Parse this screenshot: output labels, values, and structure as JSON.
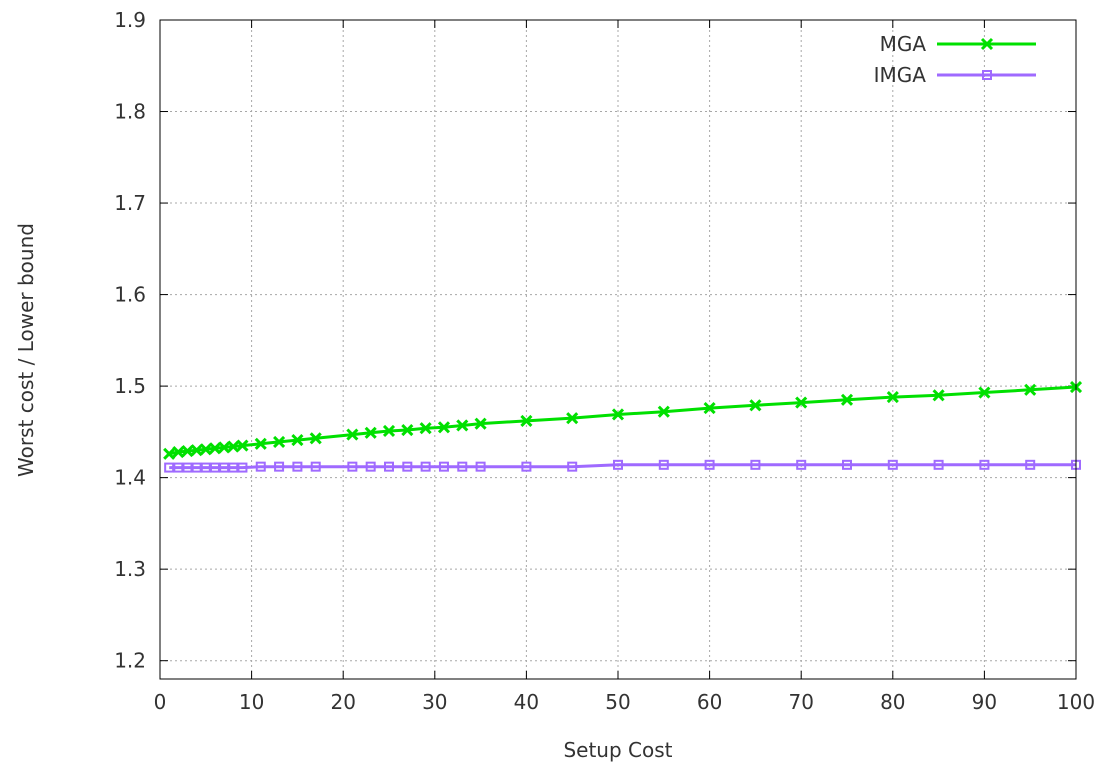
{
  "chart_data": {
    "type": "line",
    "title": "",
    "xlabel": "Setup Cost",
    "ylabel": "Worst cost / Lower bound",
    "xlim": [
      0,
      100
    ],
    "ylim": [
      1.18,
      1.9
    ],
    "xticks": [
      0,
      10,
      20,
      30,
      40,
      50,
      60,
      70,
      80,
      90,
      100
    ],
    "yticks": [
      1.2,
      1.3,
      1.4,
      1.5,
      1.6,
      1.7,
      1.8,
      1.9
    ],
    "grid": true,
    "legend_position": "top-right",
    "series": [
      {
        "name": "MGA",
        "color": "#00e000",
        "marker": "x",
        "x": [
          1,
          2,
          3,
          4,
          5,
          6,
          7,
          8,
          9,
          11,
          13,
          15,
          17,
          21,
          23,
          25,
          27,
          29,
          31,
          33,
          35,
          40,
          45,
          50,
          55,
          60,
          65,
          70,
          75,
          80,
          85,
          90,
          95,
          100
        ],
        "y": [
          1.426,
          1.428,
          1.429,
          1.43,
          1.431,
          1.432,
          1.433,
          1.434,
          1.435,
          1.437,
          1.439,
          1.441,
          1.443,
          1.447,
          1.449,
          1.451,
          1.452,
          1.454,
          1.455,
          1.457,
          1.459,
          1.462,
          1.465,
          1.469,
          1.472,
          1.476,
          1.479,
          1.482,
          1.485,
          1.488,
          1.49,
          1.493,
          1.496,
          1.499
        ]
      },
      {
        "name": "IMGA",
        "color": "#9f6aff",
        "marker": "square",
        "x": [
          1,
          2,
          3,
          4,
          5,
          6,
          7,
          8,
          9,
          11,
          13,
          15,
          17,
          21,
          23,
          25,
          27,
          29,
          31,
          33,
          35,
          40,
          45,
          50,
          55,
          60,
          65,
          70,
          75,
          80,
          85,
          90,
          95,
          100
        ],
        "y": [
          1.411,
          1.411,
          1.411,
          1.411,
          1.411,
          1.411,
          1.411,
          1.411,
          1.411,
          1.412,
          1.412,
          1.412,
          1.412,
          1.412,
          1.412,
          1.412,
          1.412,
          1.412,
          1.412,
          1.412,
          1.412,
          1.412,
          1.412,
          1.414,
          1.414,
          1.414,
          1.414,
          1.414,
          1.414,
          1.414,
          1.414,
          1.414,
          1.414,
          1.414
        ]
      }
    ]
  }
}
